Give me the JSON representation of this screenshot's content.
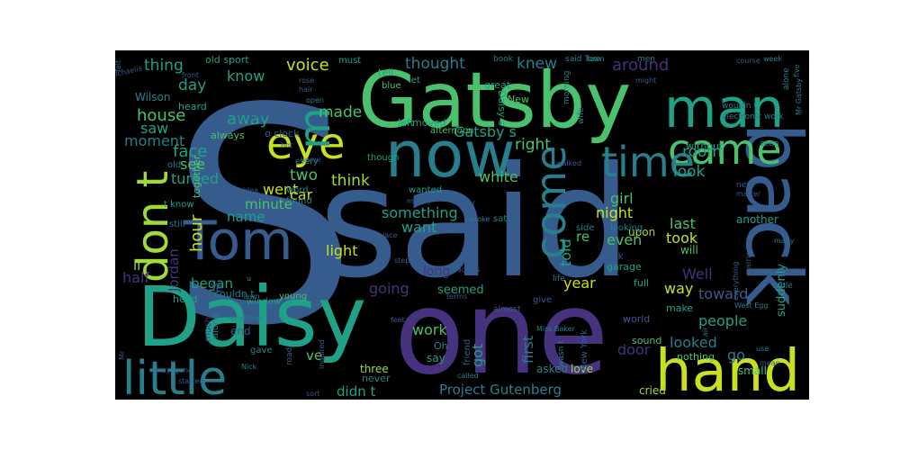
{
  "background_color": "#000000",
  "page_background_color": "#ffffff",
  "palette": {
    "p0": "#440154",
    "p1": "#46327e",
    "p2": "#365c8d",
    "p3": "#277f8e",
    "p4": "#1fa187",
    "p5": "#4ac16d",
    "p6": "#a0da39",
    "p7": "#c8e020",
    "p8": "#fde725"
  },
  "words": [
    {
      "text": "S",
      "color": "p2"
    },
    {
      "text": "said",
      "color": "p2"
    },
    {
      "text": "one",
      "color": "p1"
    },
    {
      "text": "Gatsby",
      "color": "p5"
    },
    {
      "text": "back",
      "color": "p2"
    },
    {
      "text": "Daisy",
      "color": "p4"
    },
    {
      "text": "now",
      "color": "p3"
    },
    {
      "text": "man",
      "color": "p4"
    },
    {
      "text": "hand",
      "color": "p7"
    },
    {
      "text": "little",
      "color": "p3"
    },
    {
      "text": "Tom",
      "color": "p2"
    },
    {
      "text": "came",
      "color": "p5"
    },
    {
      "text": "time",
      "color": "p3"
    },
    {
      "text": "don t",
      "color": "p6"
    },
    {
      "text": "eye",
      "color": "p7"
    },
    {
      "text": "come",
      "color": "p3"
    },
    {
      "text": "m",
      "color": "p4"
    },
    {
      "text": "voice",
      "color": "p7"
    },
    {
      "text": "thought",
      "color": "p3"
    },
    {
      "text": "knew",
      "color": "p3"
    },
    {
      "text": "around",
      "color": "p1"
    },
    {
      "text": "thing",
      "color": "p4"
    },
    {
      "text": "day",
      "color": "p4"
    },
    {
      "text": "know",
      "color": "p4"
    },
    {
      "text": "house",
      "color": "p5"
    },
    {
      "text": "away",
      "color": "p4"
    },
    {
      "text": "made",
      "color": "p5"
    },
    {
      "text": "saw",
      "color": "p4"
    },
    {
      "text": "moment",
      "color": "p3"
    },
    {
      "text": "face",
      "color": "p4"
    },
    {
      "text": "Gatsby s",
      "color": "p4"
    },
    {
      "text": "right",
      "color": "p5"
    },
    {
      "text": "room",
      "color": "p4"
    },
    {
      "text": "look",
      "color": "p4"
    },
    {
      "text": "see",
      "color": "p5"
    },
    {
      "text": "turned",
      "color": "p4"
    },
    {
      "text": "white",
      "color": "p5"
    },
    {
      "text": "two",
      "color": "p5"
    },
    {
      "text": "think",
      "color": "p6"
    },
    {
      "text": "hour",
      "color": "p7"
    },
    {
      "text": "name",
      "color": "p4"
    },
    {
      "text": "minute",
      "color": "p5"
    },
    {
      "text": "went",
      "color": "p7"
    },
    {
      "text": "car",
      "color": "p7"
    },
    {
      "text": "something",
      "color": "p4"
    },
    {
      "text": "night",
      "color": "p7"
    },
    {
      "text": "girl",
      "color": "p5"
    },
    {
      "text": "want",
      "color": "p4"
    },
    {
      "text": "last",
      "color": "p5"
    },
    {
      "text": "took",
      "color": "p7"
    },
    {
      "text": "even",
      "color": "p5"
    },
    {
      "text": "light",
      "color": "p7"
    },
    {
      "text": "Jordan",
      "color": "p1"
    },
    {
      "text": "half",
      "color": "p1"
    },
    {
      "text": "began",
      "color": "p4"
    },
    {
      "text": "going",
      "color": "p1"
    },
    {
      "text": "toward",
      "color": "p2"
    },
    {
      "text": "way",
      "color": "p7"
    },
    {
      "text": "year",
      "color": "p7"
    },
    {
      "text": "Well",
      "color": "p1"
    },
    {
      "text": "people",
      "color": "p4"
    },
    {
      "text": "work",
      "color": "p5"
    },
    {
      "text": "looked",
      "color": "p3"
    },
    {
      "text": "door",
      "color": "p1"
    },
    {
      "text": "go",
      "color": "p3"
    },
    {
      "text": "ve",
      "color": "p5"
    },
    {
      "text": "didn t",
      "color": "p4"
    },
    {
      "text": "Project Gutenberg",
      "color": "p3"
    },
    {
      "text": "first",
      "color": "p3"
    },
    {
      "text": "told",
      "color": "p4"
    },
    {
      "text": "got",
      "color": "p4"
    },
    {
      "text": "re",
      "color": "p5"
    },
    {
      "text": "ll",
      "color": "p6"
    },
    {
      "text": "upon",
      "color": "p6"
    },
    {
      "text": "long",
      "color": "p1"
    },
    {
      "text": "seemed",
      "color": "p4"
    },
    {
      "text": "three",
      "color": "p6"
    },
    {
      "text": "never",
      "color": "p3"
    },
    {
      "text": "say",
      "color": "p4"
    },
    {
      "text": "Oh",
      "color": "p3"
    },
    {
      "text": "asked",
      "color": "p3"
    },
    {
      "text": "cried",
      "color": "p6"
    },
    {
      "text": "love",
      "color": "p6"
    },
    {
      "text": "small",
      "color": "p5"
    },
    {
      "text": "nothing",
      "color": "p5"
    },
    {
      "text": "sound",
      "color": "p5"
    },
    {
      "text": "suddenly",
      "color": "p4"
    },
    {
      "text": "will",
      "color": "p5"
    },
    {
      "text": "another",
      "color": "p4"
    },
    {
      "text": "together",
      "color": "p5"
    },
    {
      "text": "old sport",
      "color": "p4"
    },
    {
      "text": "must",
      "color": "p4"
    },
    {
      "text": "tell",
      "color": "p4"
    },
    {
      "text": "great",
      "color": "p4"
    },
    {
      "text": "New",
      "color": "p5"
    },
    {
      "text": "Wilson",
      "color": "p3"
    },
    {
      "text": "heard",
      "color": "p4"
    },
    {
      "text": "always",
      "color": "p5"
    },
    {
      "text": "though",
      "color": "p4"
    },
    {
      "text": "wanted",
      "color": "p4"
    },
    {
      "text": "afternoon",
      "color": "p5"
    },
    {
      "text": "left",
      "color": "p4"
    },
    {
      "text": "moved",
      "color": "p4"
    },
    {
      "text": "Daisy s",
      "color": "p4"
    },
    {
      "text": "let",
      "color": "p4"
    },
    {
      "text": "blue",
      "color": "p5"
    },
    {
      "text": "book",
      "color": "p3"
    },
    {
      "text": "said Tom",
      "color": "p3"
    },
    {
      "text": "men",
      "color": "p3"
    },
    {
      "text": "course",
      "color": "p2"
    },
    {
      "text": "week",
      "color": "p3"
    },
    {
      "text": "Mr Gatsby",
      "color": "p3"
    },
    {
      "text": "alone",
      "color": "p3"
    },
    {
      "text": "five",
      "color": "p3"
    },
    {
      "text": "town",
      "color": "p3"
    },
    {
      "text": "morning",
      "color": "p3"
    },
    {
      "text": "wife",
      "color": "p3"
    },
    {
      "text": "without",
      "color": "p4"
    },
    {
      "text": "wouldn t",
      "color": "p3"
    },
    {
      "text": "electronic work",
      "color": "p3"
    },
    {
      "text": "seen",
      "color": "p3"
    },
    {
      "text": "next",
      "color": "p2"
    },
    {
      "text": "matter",
      "color": "p2"
    },
    {
      "text": "married",
      "color": "p2"
    },
    {
      "text": "everything",
      "color": "p2"
    },
    {
      "text": "table",
      "color": "p3"
    },
    {
      "text": "many",
      "color": "p3"
    },
    {
      "text": "garage",
      "color": "p4"
    },
    {
      "text": "full",
      "color": "p4"
    },
    {
      "text": "make",
      "color": "p4"
    },
    {
      "text": "West Egg",
      "color": "p3"
    },
    {
      "text": "world",
      "color": "p2"
    },
    {
      "text": "air",
      "color": "p3"
    },
    {
      "text": "use",
      "color": "p3"
    },
    {
      "text": "mean",
      "color": "p2"
    },
    {
      "text": "felt",
      "color": "p2"
    },
    {
      "text": "Michaelis",
      "color": "p2"
    },
    {
      "text": "front",
      "color": "p2"
    },
    {
      "text": "rose",
      "color": "p2"
    },
    {
      "text": "hair",
      "color": "p2"
    },
    {
      "text": "open",
      "color": "p3"
    },
    {
      "text": "rather",
      "color": "p2"
    },
    {
      "text": "hot",
      "color": "p2"
    },
    {
      "text": "home",
      "color": "p2"
    },
    {
      "text": "idea",
      "color": "p2"
    },
    {
      "text": "word",
      "color": "p3"
    },
    {
      "text": "found",
      "color": "p3"
    },
    {
      "text": "every",
      "color": "p3"
    },
    {
      "text": "money",
      "color": "p2"
    },
    {
      "text": "hear",
      "color": "p2"
    },
    {
      "text": "broke",
      "color": "p3"
    },
    {
      "text": "sat",
      "color": "p3"
    },
    {
      "text": "side",
      "color": "p3"
    },
    {
      "text": "looking",
      "color": "p3"
    },
    {
      "text": "dark",
      "color": "p2"
    },
    {
      "text": "might",
      "color": "p2"
    },
    {
      "text": "walked",
      "color": "p2"
    },
    {
      "text": "place",
      "color": "p2"
    },
    {
      "text": "step",
      "color": "p2"
    },
    {
      "text": "across",
      "color": "p2"
    },
    {
      "text": "terms",
      "color": "p2"
    },
    {
      "text": "life",
      "color": "p3"
    },
    {
      "text": "give",
      "color": "p2"
    },
    {
      "text": "almost",
      "color": "p2"
    },
    {
      "text": "feet",
      "color": "p2"
    },
    {
      "text": "Miss Baker",
      "color": "p3"
    },
    {
      "text": "New York",
      "color": "p2"
    },
    {
      "text": "wasn t",
      "color": "p3"
    },
    {
      "text": "friend",
      "color": "p2"
    },
    {
      "text": "called",
      "color": "p3"
    },
    {
      "text": "head",
      "color": "p4"
    },
    {
      "text": "window",
      "color": "p4"
    },
    {
      "text": "young",
      "color": "p5"
    },
    {
      "text": "end",
      "color": "p2"
    },
    {
      "text": "anything",
      "color": "p3"
    },
    {
      "text": "much",
      "color": "p1"
    },
    {
      "text": "couldn t",
      "color": "p3"
    },
    {
      "text": "along",
      "color": "p3"
    },
    {
      "text": "still",
      "color": "p3"
    },
    {
      "text": "old",
      "color": "p3"
    },
    {
      "text": "t know",
      "color": "p4"
    },
    {
      "text": "o clock",
      "color": "p2"
    },
    {
      "text": "u",
      "color": "p4"
    },
    {
      "text": "Ye",
      "color": "p2"
    },
    {
      "text": "lawn",
      "color": "p3"
    },
    {
      "text": "gave",
      "color": "p3"
    },
    {
      "text": "Nick",
      "color": "p3"
    },
    {
      "text": "road",
      "color": "p2"
    },
    {
      "text": "may",
      "color": "p2"
    },
    {
      "text": "gone",
      "color": "p2"
    },
    {
      "text": "started",
      "color": "p2"
    },
    {
      "text": "sort",
      "color": "p2"
    },
    {
      "text": "inquired",
      "color": "p2"
    },
    {
      "text": "Mr",
      "color": "p2"
    },
    {
      "text": "ve",
      "color": "p2"
    },
    {
      "text": "t",
      "color": "p3"
    },
    {
      "text": "believe",
      "color": "p2"
    }
  ]
}
